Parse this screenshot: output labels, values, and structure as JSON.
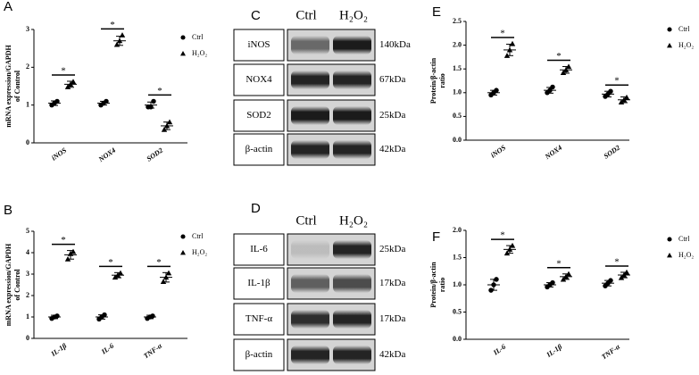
{
  "chart_data": [
    {
      "type": "dot",
      "panel_label": "A",
      "ylabel": [
        "mRNA expression/GAPDH",
        "of Control"
      ],
      "categories": [
        "iNOS",
        "NOX4",
        "SOD2"
      ],
      "ylim": [
        0,
        3
      ],
      "yticks": [
        0,
        1,
        2,
        3
      ],
      "legend": "right",
      "significance": [
        "*",
        "*",
        "*"
      ],
      "series": [
        {
          "name": "Ctrl",
          "marker": "circle",
          "color": "#000000",
          "values": [
            1.05,
            1.05,
            1.0
          ],
          "errors": [
            0.06,
            0.05,
            0.08
          ],
          "points": [
            [
              1.0,
              1.05,
              1.1
            ],
            [
              1.0,
              1.05,
              1.1
            ],
            [
              0.95,
              0.95,
              1.1
            ]
          ]
        },
        {
          "name": "H₂O₂",
          "marker": "triangle",
          "color": "#000000",
          "values": [
            1.55,
            2.7,
            0.45
          ],
          "errors": [
            0.08,
            0.12,
            0.1
          ],
          "points": [
            [
              1.48,
              1.55,
              1.62
            ],
            [
              2.6,
              2.7,
              2.85
            ],
            [
              0.35,
              0.45,
              0.55
            ]
          ]
        }
      ]
    },
    {
      "type": "dot",
      "panel_label": "B",
      "ylabel": [
        "mRNA expression/GAPDH",
        "of Control"
      ],
      "categories": [
        "IL-1β",
        "IL-6",
        "TNF-α"
      ],
      "ylim": [
        0,
        5
      ],
      "yticks": [
        0,
        1,
        2,
        3,
        4,
        5
      ],
      "legend": "right",
      "significance": [
        "*",
        "*",
        "*"
      ],
      "series": [
        {
          "name": "Ctrl",
          "marker": "circle",
          "color": "#000000",
          "values": [
            1.0,
            1.0,
            1.0
          ],
          "errors": [
            0.08,
            0.1,
            0.08
          ],
          "points": [
            [
              0.93,
              1.0,
              1.05
            ],
            [
              0.9,
              1.0,
              1.1
            ],
            [
              0.93,
              1.0,
              1.05
            ]
          ]
        },
        {
          "name": "H₂O₂",
          "marker": "triangle",
          "color": "#000000",
          "values": [
            3.9,
            2.95,
            2.85
          ],
          "errors": [
            0.2,
            0.12,
            0.22
          ],
          "points": [
            [
              3.7,
              3.95,
              4.05
            ],
            [
              2.85,
              2.95,
              3.05
            ],
            [
              2.65,
              2.85,
              3.05
            ]
          ]
        }
      ]
    },
    {
      "type": "dot",
      "panel_label": "E",
      "ylabel": [
        "Protein/β-actin",
        "ratio"
      ],
      "categories": [
        "iNOS",
        "NOX4",
        "SOD2"
      ],
      "ylim": [
        0,
        2.5
      ],
      "yticks": [
        {
          "value": 0,
          "label": "0.0"
        },
        {
          "value": 0.5,
          "label": "0.5"
        },
        {
          "value": 1,
          "label": "1.0"
        },
        {
          "value": 1.5,
          "label": "1.5"
        },
        {
          "value": 2,
          "label": "2.0"
        },
        {
          "value": 2.5,
          "label": "2.5"
        }
      ],
      "legend": "right",
      "significance": [
        "*",
        "*",
        "*"
      ],
      "series": [
        {
          "name": "Ctrl",
          "marker": "circle",
          "color": "#000000",
          "values": [
            1.0,
            1.05,
            0.97
          ],
          "errors": [
            0.05,
            0.06,
            0.06
          ],
          "points": [
            [
              0.95,
              1.0,
              1.05
            ],
            [
              1.0,
              1.05,
              1.12
            ],
            [
              0.92,
              0.97,
              1.03
            ]
          ]
        },
        {
          "name": "H₂O₂",
          "marker": "triangle",
          "color": "#000000",
          "values": [
            1.9,
            1.48,
            0.85
          ],
          "errors": [
            0.12,
            0.07,
            0.06
          ],
          "points": [
            [
              1.78,
              1.9,
              2.03
            ],
            [
              1.42,
              1.48,
              1.55
            ],
            [
              0.8,
              0.85,
              0.9
            ]
          ]
        }
      ]
    },
    {
      "type": "dot",
      "panel_label": "F",
      "ylabel": [
        "Protein/β-actin",
        "ratio"
      ],
      "categories": [
        "IL-6",
        "IL-1β",
        "TNF-α"
      ],
      "ylim": [
        0,
        2
      ],
      "yticks": [
        {
          "value": 0,
          "label": "0.0"
        },
        {
          "value": 0.5,
          "label": "0.5"
        },
        {
          "value": 1,
          "label": "1.0"
        },
        {
          "value": 1.5,
          "label": "1.5"
        },
        {
          "value": 2,
          "label": "2.0"
        }
      ],
      "legend": "right",
      "significance": [
        "*",
        "*",
        "*"
      ],
      "series": [
        {
          "name": "Ctrl",
          "marker": "circle",
          "color": "#000000",
          "values": [
            1.0,
            1.0,
            1.03
          ],
          "errors": [
            0.1,
            0.04,
            0.05
          ],
          "points": [
            [
              0.9,
              1.0,
              1.1
            ],
            [
              0.96,
              1.0,
              1.04
            ],
            [
              0.98,
              1.03,
              1.08
            ]
          ]
        },
        {
          "name": "H₂O₂",
          "marker": "triangle",
          "color": "#000000",
          "values": [
            1.65,
            1.15,
            1.18
          ],
          "errors": [
            0.07,
            0.05,
            0.05
          ],
          "points": [
            [
              1.58,
              1.65,
              1.72
            ],
            [
              1.1,
              1.15,
              1.2
            ],
            [
              1.13,
              1.18,
              1.23
            ]
          ]
        }
      ]
    }
  ],
  "blots": [
    {
      "panel_label": "C",
      "lanes": [
        "Ctrl",
        "H₂O₂"
      ],
      "rows": [
        {
          "protein": "iNOS",
          "size": "140kDa"
        },
        {
          "protein": "NOX4",
          "size": "67kDa"
        },
        {
          "protein": "SOD2",
          "size": "25kDa"
        },
        {
          "protein": "β-actin",
          "size": "42kDa"
        }
      ]
    },
    {
      "panel_label": "D",
      "lanes": [
        "Ctrl",
        "H₂O₂"
      ],
      "rows": [
        {
          "protein": "IL-6",
          "size": "25kDa"
        },
        {
          "protein": "IL-1β",
          "size": "17kDa"
        },
        {
          "protein": "TNF-α",
          "size": "17kDa"
        },
        {
          "protein": "β-actin",
          "size": "42kDa"
        }
      ]
    }
  ]
}
